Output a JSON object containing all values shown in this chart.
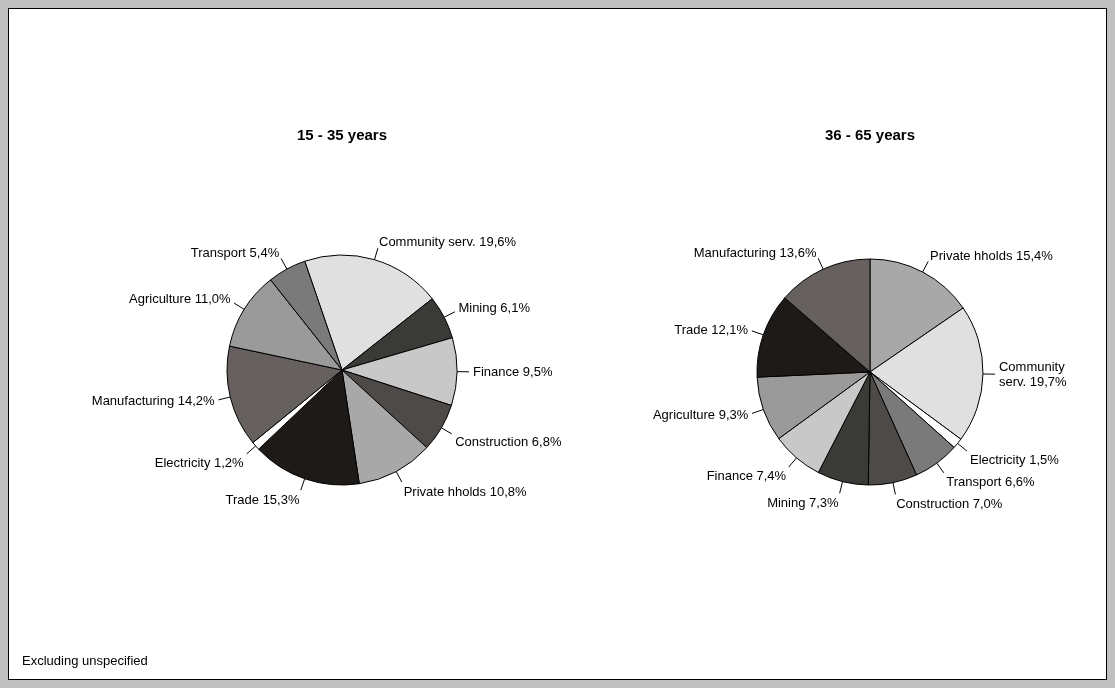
{
  "chart_data": [
    {
      "type": "pie",
      "title": "15 - 35 years",
      "categories": [
        "Community serv.",
        "Mining",
        "Finance",
        "Construction",
        "Private hholds",
        "Trade",
        "Electricity",
        "Manufacturing",
        "Agriculture",
        "Transport"
      ],
      "values": [
        19.6,
        6.1,
        9.5,
        6.8,
        10.8,
        15.3,
        1.2,
        14.2,
        11.0,
        5.4
      ],
      "value_labels": [
        "19,6%",
        "6,1%",
        "9,5%",
        "6,8%",
        "10,8%",
        "15,3%",
        "1,2%",
        "14,2%",
        "11,0%",
        "5,4%"
      ],
      "colors": [
        "#e0e0e0",
        "#3a3a36",
        "#c8c8c8",
        "#4e4a48",
        "#a8a8a8",
        "#1e1a18",
        "#ffffff",
        "#66615e",
        "#9a9a9a",
        "#7a7a7a"
      ],
      "annotations": [
        "Excluding unspecified"
      ]
    },
    {
      "type": "pie",
      "title": "36 - 65 years",
      "categories": [
        "Private hholds",
        "Community serv.",
        "Electricity",
        "Transport",
        "Construction",
        "Mining",
        "Finance",
        "Agriculture",
        "Trade",
        "Manufacturing"
      ],
      "values": [
        15.4,
        19.7,
        1.5,
        6.6,
        7.0,
        7.3,
        7.4,
        9.3,
        12.1,
        13.6
      ],
      "value_labels": [
        "15,4%",
        "19,7%",
        "1,5%",
        "6,6%",
        "7,0%",
        "7,3%",
        "7,4%",
        "9,3%",
        "12,1%",
        "13,6%"
      ],
      "colors": [
        "#a8a8a8",
        "#e0e0e0",
        "#ffffff",
        "#7a7a7a",
        "#4e4a48",
        "#3a3a36",
        "#c8c8c8",
        "#9a9a9a",
        "#1e1a18",
        "#66615e"
      ]
    }
  ]
}
